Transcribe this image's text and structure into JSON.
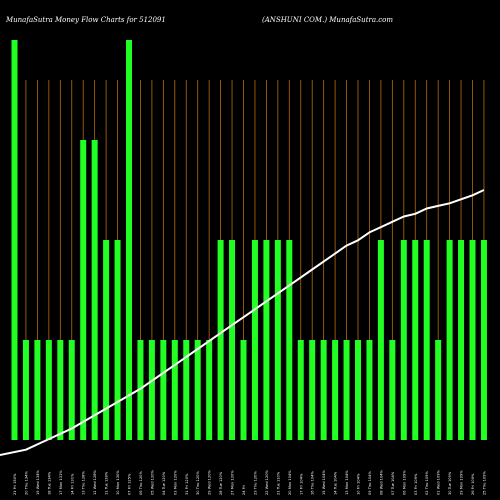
{
  "header": {
    "left": "MunafaSutra  Money Flow  Charts for 512091",
    "right": "(ANSHUNI COM.) MunafaSutra.com"
  },
  "colors": {
    "background": "#000000",
    "bar": "#22ff22",
    "grid": "#b86a12",
    "line": "#ffffff",
    "text": "#ffffff"
  },
  "chart_data": {
    "type": "bar",
    "grid": true,
    "grid_orientation": "vertical",
    "bar_levels": [
      1,
      2,
      3,
      4
    ],
    "values": [
      4,
      1,
      1,
      1,
      1,
      1,
      3,
      3,
      2,
      2,
      4,
      1,
      1,
      1,
      1,
      1,
      1,
      1,
      2,
      2,
      1,
      2,
      2,
      2,
      2,
      1,
      1,
      1,
      1,
      1,
      1,
      1,
      2,
      1,
      2,
      2,
      2,
      1,
      2,
      2,
      2,
      2
    ],
    "line": [
      0.0,
      0.02,
      0.04,
      0.06,
      0.08,
      0.1,
      0.125,
      0.15,
      0.175,
      0.2,
      0.225,
      0.25,
      0.28,
      0.31,
      0.34,
      0.37,
      0.4,
      0.43,
      0.46,
      0.49,
      0.52,
      0.55,
      0.58,
      0.61,
      0.64,
      0.67,
      0.7,
      0.73,
      0.76,
      0.79,
      0.81,
      0.84,
      0.86,
      0.88,
      0.9,
      0.91,
      0.93,
      0.94,
      0.95,
      0.965,
      0.98,
      1.0
    ],
    "categories": [
      "21 Fri 150%",
      "20 Thu 134%",
      "19 Wed 134%",
      "18 Tue 134%",
      "17 Mon 131%",
      "14 Fri 131%",
      "13 Thu 128%",
      "12 Wed 128%",
      "11 Tue 128%",
      "10 Mon 130%",
      "07 Fri 125%",
      "06 Thu 120%",
      "05 Wed 120%",
      "04 Tue 120%",
      "03 Mon 120%",
      "31 Fri 120%",
      "30 Thu 120%",
      "29 Wed 120%",
      "28 Tue 120%",
      "27 Mon 120%",
      "24 Fri",
      "23 Thu 120%",
      "22 Wed 120%",
      "21 Tue 110%",
      "20 Mon 104%",
      "17 Fri 104%",
      "16 Thu 104%",
      "15 Wed 104%",
      "14 Tue 104%",
      "13 Mon 104%",
      "10 Fri 104%",
      "09 Thu 104%",
      "08 Wed 104%",
      "07 Tue 104%",
      "06 Mon 109%",
      "03 Fri 109%",
      "02 Thu 109%",
      "01 Wed 109%",
      "30 Tue 109%",
      "29 Mon 109%",
      "26 Fri 109%",
      "25 Thu 109%"
    ]
  }
}
